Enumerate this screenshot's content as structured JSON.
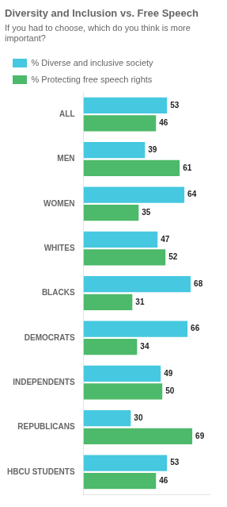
{
  "chart_data": {
    "type": "bar",
    "orientation": "horizontal",
    "title": "Diversity and Inclusion vs. Free Speech",
    "subtitle": "If you had to choose, which do you think is more important?",
    "categories": [
      "ALL",
      "MEN",
      "WOMEN",
      "WHITES",
      "BLACKS",
      "DEMOCRATS",
      "INDEPENDENTS",
      "REPUBLICANS",
      "HBCU STUDENTS"
    ],
    "series": [
      {
        "name": "% Diverse and inclusive society",
        "color": "#45c8e0",
        "values": [
          53,
          39,
          64,
          47,
          68,
          66,
          49,
          30,
          53
        ]
      },
      {
        "name": "% Protecting free speech rights",
        "color": "#4db96a",
        "values": [
          46,
          61,
          35,
          52,
          31,
          34,
          50,
          69,
          46
        ]
      }
    ],
    "xlim": [
      0,
      80
    ],
    "data_labels": true,
    "tick_labels": "y",
    "grid": false,
    "legend": "upper left"
  }
}
